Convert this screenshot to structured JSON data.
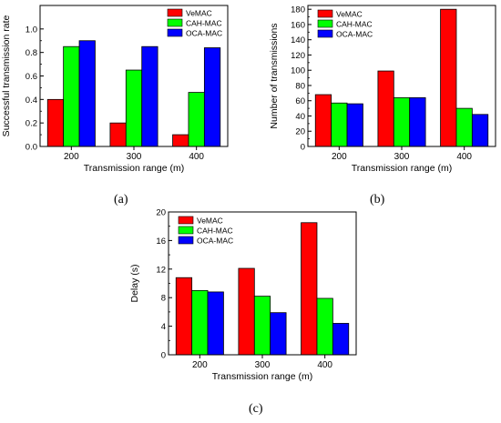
{
  "captions": [
    "(a)",
    "(b)",
    "(c)"
  ],
  "colors": {
    "VeMAC": "#ff0000",
    "CAH-MAC": "#00ff00",
    "OCA-MAC": "#0000ff"
  },
  "chart_data": [
    {
      "type": "bar",
      "title": "",
      "xlabel": "Transmission range (m)",
      "ylabel": "Successful transmission rate",
      "categories": [
        "200",
        "300",
        "400"
      ],
      "ylim": [
        0,
        1.2
      ],
      "yticks": [
        "0.0",
        "0.2",
        "0.4",
        "0.6",
        "0.8",
        "1.0"
      ],
      "legend_position": "top-right",
      "series": [
        {
          "name": "VeMAC",
          "values": [
            0.4,
            0.2,
            0.1
          ]
        },
        {
          "name": "CAH-MAC",
          "values": [
            0.85,
            0.65,
            0.46
          ]
        },
        {
          "name": "OCA-MAC",
          "values": [
            0.9,
            0.85,
            0.84
          ]
        }
      ]
    },
    {
      "type": "bar",
      "title": "",
      "xlabel": "Transmission range (m)",
      "ylabel": "Number of transmissions",
      "categories": [
        "200",
        "300",
        "400"
      ],
      "ylim": [
        0,
        185
      ],
      "yticks": [
        "0",
        "20",
        "40",
        "60",
        "80",
        "100",
        "120",
        "140",
        "160",
        "180"
      ],
      "legend_position": "top-left",
      "series": [
        {
          "name": "VeMAC",
          "values": [
            68,
            99,
            180
          ]
        },
        {
          "name": "CAH-MAC",
          "values": [
            57,
            64,
            50
          ]
        },
        {
          "name": "OCA-MAC",
          "values": [
            56,
            64,
            42
          ]
        }
      ]
    },
    {
      "type": "bar",
      "title": "",
      "xlabel": "Transmission range (m)",
      "ylabel": "Delay (s)",
      "categories": [
        "200",
        "300",
        "400"
      ],
      "ylim": [
        0,
        20
      ],
      "yticks": [
        "0",
        "4",
        "8",
        "12",
        "16",
        "20"
      ],
      "legend_position": "top-left",
      "series": [
        {
          "name": "VeMAC",
          "values": [
            10.8,
            12.1,
            18.5
          ]
        },
        {
          "name": "CAH-MAC",
          "values": [
            9.0,
            8.2,
            7.9
          ]
        },
        {
          "name": "OCA-MAC",
          "values": [
            8.8,
            5.9,
            4.4
          ]
        }
      ]
    }
  ]
}
